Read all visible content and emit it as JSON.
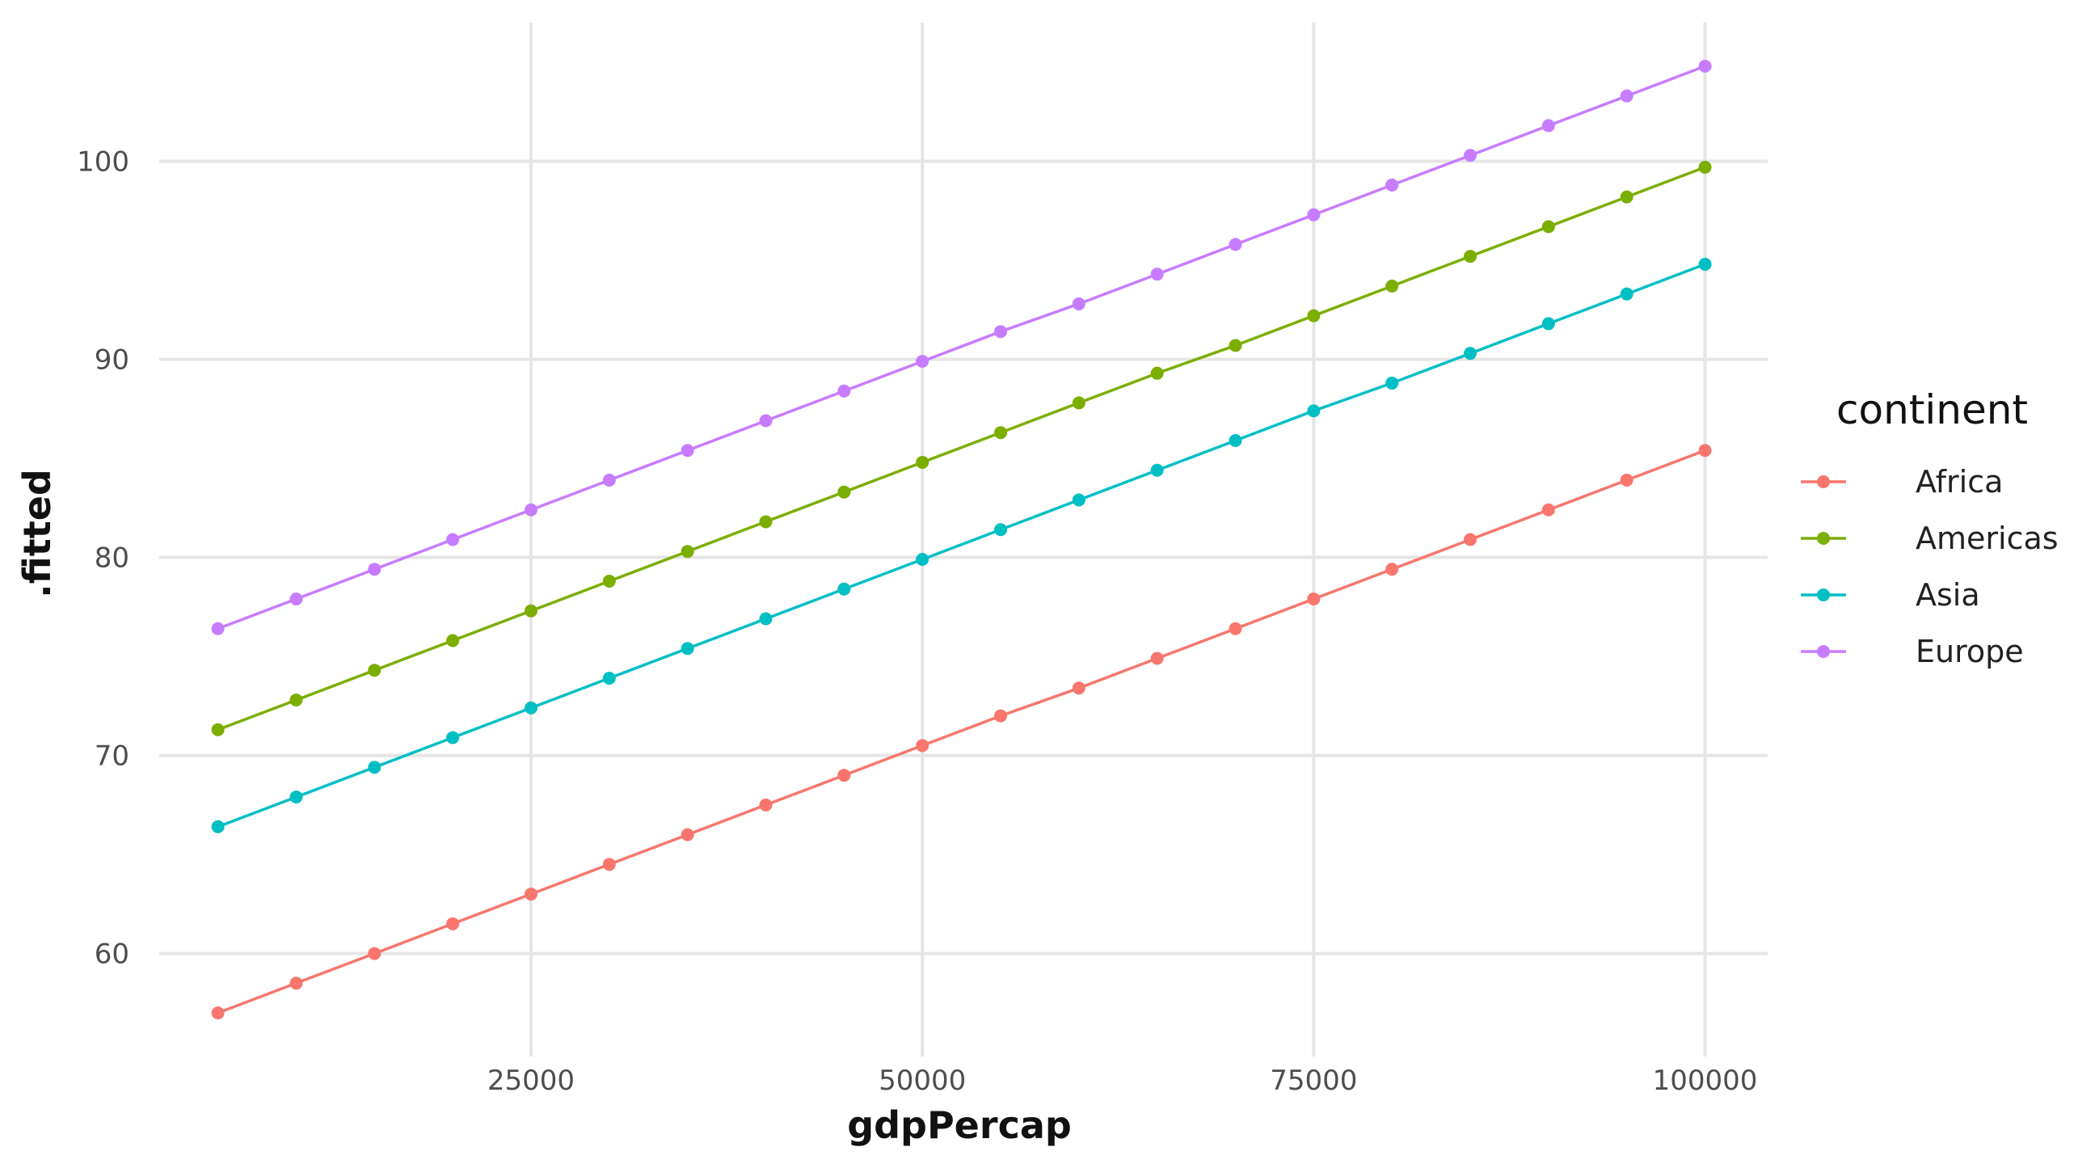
{
  "chart_data": {
    "type": "line",
    "title": "",
    "xlabel": "gdpPercap",
    "ylabel": ".fitted",
    "xlim": [
      1250,
      104000
    ],
    "ylim": [
      54.8,
      107
    ],
    "x_ticks": [
      25000,
      50000,
      75000,
      100000
    ],
    "y_ticks": [
      60,
      70,
      80,
      90,
      100
    ],
    "grid": true,
    "legend": {
      "title": "continent",
      "position": "right"
    },
    "x": [
      5000,
      10000,
      15000,
      20000,
      25000,
      30000,
      35000,
      40000,
      45000,
      50000,
      55000,
      60000,
      65000,
      70000,
      75000,
      80000,
      85000,
      90000,
      95000,
      100000
    ],
    "series": [
      {
        "name": "Africa",
        "color": "#F8766D",
        "values": [
          57.0,
          58.5,
          60.0,
          61.5,
          63.0,
          64.5,
          66.0,
          67.5,
          69.0,
          70.5,
          72.0,
          73.4,
          74.9,
          76.4,
          77.9,
          79.4,
          80.9,
          82.4,
          83.9,
          85.4
        ]
      },
      {
        "name": "Americas",
        "color": "#7CAE00",
        "values": [
          71.3,
          72.8,
          74.3,
          75.8,
          77.3,
          78.8,
          80.3,
          81.8,
          83.3,
          84.8,
          86.3,
          87.8,
          89.3,
          90.7,
          92.2,
          93.7,
          95.2,
          96.7,
          98.2,
          99.7
        ]
      },
      {
        "name": "Asia",
        "color": "#00BFC4",
        "values": [
          66.4,
          67.9,
          69.4,
          70.9,
          72.4,
          73.9,
          75.4,
          76.9,
          78.4,
          79.9,
          81.4,
          82.9,
          84.4,
          85.9,
          87.4,
          88.8,
          90.3,
          91.8,
          93.3,
          94.8
        ]
      },
      {
        "name": "Europe",
        "color": "#C77CFF",
        "values": [
          76.4,
          77.9,
          79.4,
          80.9,
          82.4,
          83.9,
          85.4,
          86.9,
          88.4,
          89.9,
          91.4,
          92.8,
          94.3,
          95.8,
          97.3,
          98.8,
          100.3,
          101.8,
          103.3,
          104.8
        ]
      }
    ]
  }
}
